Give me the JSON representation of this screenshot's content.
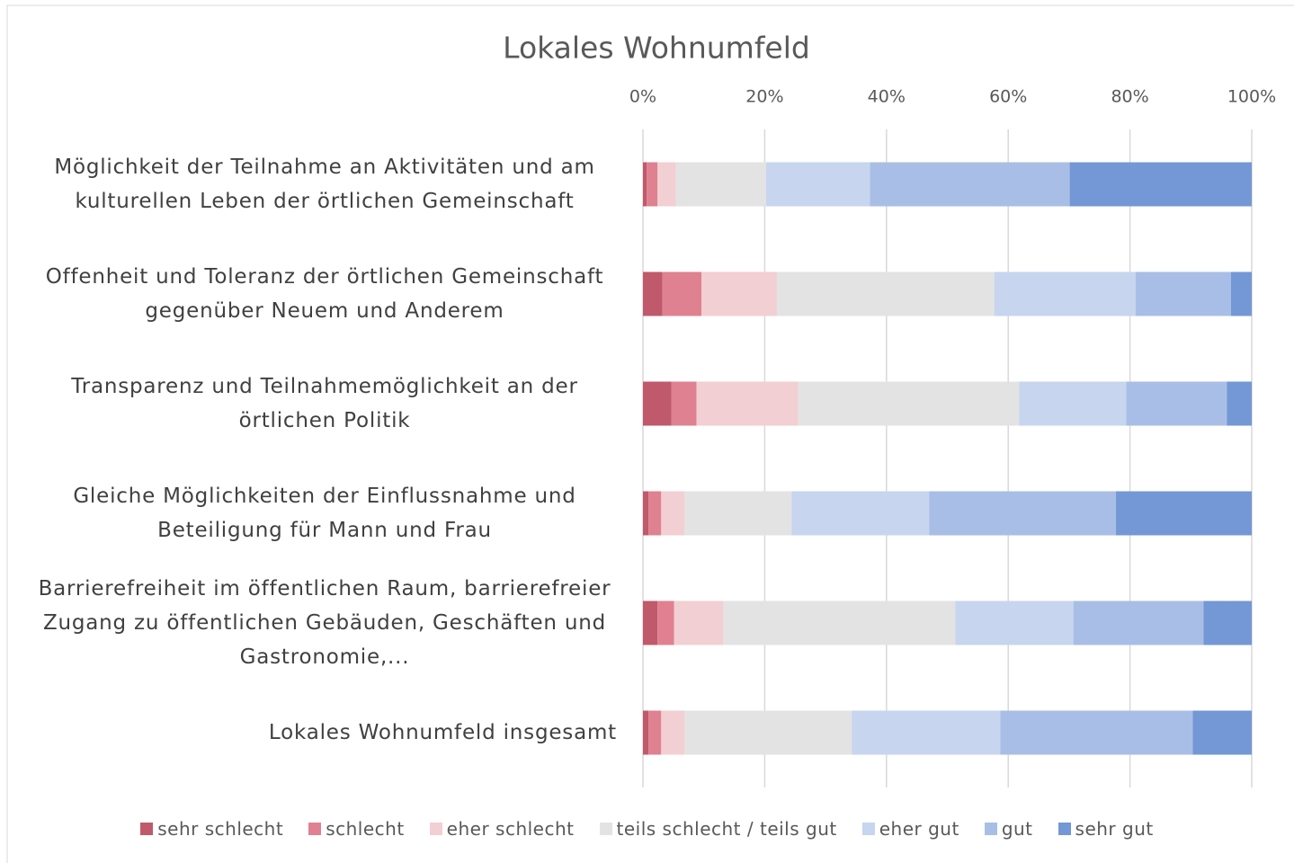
{
  "chart_data": {
    "type": "stacked_barh",
    "title": "Lokales Wohnumfeld",
    "categories": [
      "Möglichkeit der Teilnahme an Aktivitäten und am kulturellen Leben der örtlichen Gemeinschaft",
      "Offenheit und Toleranz der örtlichen Gemeinschaft gegenüber Neuem und Anderem",
      "Transparenz und Teilnahmemöglichkeit an der örtlichen Politik",
      "Gleiche Möglichkeiten der Einflussnahme und Beteiligung für Mann und Frau",
      "Barrierefreiheit im öffentlichen Raum, barrierefreier Zugang zu öffentlichen Gebäuden, Geschäften und Gastronomie,...",
      "Lokales Wohnumfeld insgesamt"
    ],
    "series": [
      {
        "name": "sehr schlecht",
        "color": "#c0596b",
        "values": [
          0.6,
          3.2,
          4.7,
          0.9,
          2.4,
          0.9
        ]
      },
      {
        "name": "schlecht",
        "color": "#df8190",
        "values": [
          1.8,
          6.4,
          4.1,
          2.1,
          2.7,
          2.1
        ]
      },
      {
        "name": "eher schlecht",
        "color": "#f2cfd2",
        "values": [
          3.0,
          12.4,
          16.7,
          3.8,
          8.1,
          3.8
        ]
      },
      {
        "name": "teils schlecht / teils gut",
        "color": "#e3e3e3",
        "values": [
          14.8,
          35.7,
          36.3,
          17.6,
          38.1,
          27.5
        ]
      },
      {
        "name": "eher gut",
        "color": "#c7d5ee",
        "values": [
          17.1,
          23.2,
          17.6,
          22.6,
          19.4,
          24.4
        ]
      },
      {
        "name": "gut",
        "color": "#a9bee6",
        "values": [
          32.8,
          15.7,
          16.5,
          30.7,
          21.4,
          31.6
        ]
      },
      {
        "name": "sehr gut",
        "color": "#7497d5",
        "values": [
          29.9,
          3.4,
          4.1,
          22.3,
          7.9,
          9.7
        ]
      }
    ],
    "xlim": [
      0,
      100
    ],
    "xticks": [
      {
        "value": 0,
        "label": "0%"
      },
      {
        "value": 20,
        "label": "20%"
      },
      {
        "value": 40,
        "label": "40%"
      },
      {
        "value": 60,
        "label": "60%"
      },
      {
        "value": 80,
        "label": "80%"
      },
      {
        "value": 100,
        "label": "100%"
      }
    ],
    "grid": true,
    "legend": "bottom"
  }
}
